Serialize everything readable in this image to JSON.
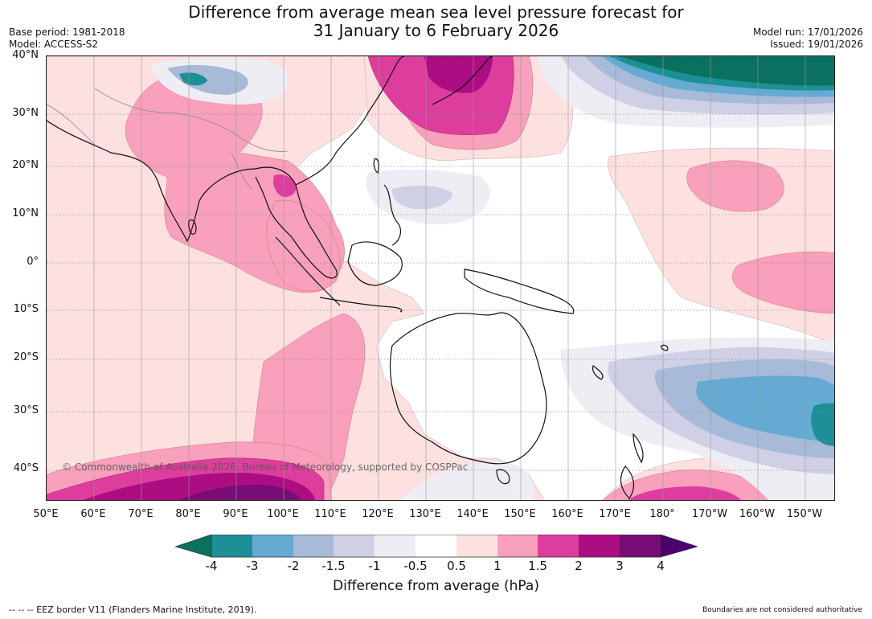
{
  "header": {
    "title_line1": "Difference from average mean sea level pressure forecast for",
    "title_line2": "31 January to 6 February 2026",
    "base_period": "Base period: 1981-2018",
    "model": "Model: ACCESS-S2",
    "model_run": "Model run: 17/01/2026",
    "issued": "Issued: 19/01/2026"
  },
  "map": {
    "lat_labels": [
      "40°N",
      "30°N",
      "20°N",
      "10°N",
      "0°",
      "10°S",
      "20°S",
      "30°S",
      "40°S"
    ],
    "lon_labels": [
      "50°E",
      "60°E",
      "70°E",
      "80°E",
      "90°E",
      "100°E",
      "110°E",
      "120°E",
      "130°E",
      "140°E",
      "150°E",
      "160°E",
      "170°E",
      "180°",
      "170°W",
      "160°W",
      "150°W"
    ],
    "copyright": "© Commonwealth of Australia 2026, Bureau of Meteorology, supported by COSPPac"
  },
  "colorbar": {
    "ticks": [
      "-4",
      "-3",
      "-2",
      "-1.5",
      "-1",
      "-0.5",
      "0.5",
      "1",
      "1.5",
      "2",
      "3",
      "4"
    ],
    "colors": [
      "#0a7060",
      "#1c9096",
      "#65aad2",
      "#a7bad8",
      "#cfd0e5",
      "#eeedf4",
      "#ffffff",
      "#fde0e0",
      "#f8a0bc",
      "#dd3d9d",
      "#ad0d82",
      "#790d77",
      "#4b006e"
    ],
    "label": "Difference from average (hPa)"
  },
  "footer": {
    "eez": "--  --  -- EEZ border V11 (Flanders Marine Institute, 2019).",
    "disclaimer": "Boundaries are not considered authoritative"
  }
}
